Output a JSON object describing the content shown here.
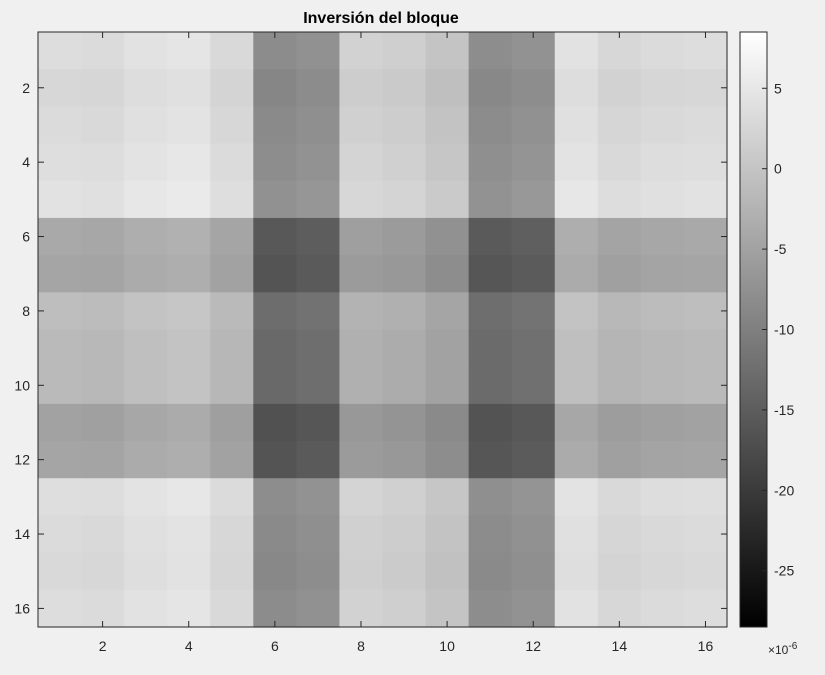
{
  "chart_data": {
    "type": "heatmap",
    "title": "Inversión del bloque",
    "xlabel": "",
    "ylabel": "",
    "colormap": "gray",
    "grid": false,
    "xlim": [
      0.5,
      16.5
    ],
    "ylim": [
      0.5,
      16.5
    ],
    "y_direction": "reversed",
    "xticks": [
      2,
      4,
      6,
      8,
      10,
      12,
      14,
      16
    ],
    "yticks": [
      2,
      4,
      6,
      8,
      10,
      12,
      14,
      16
    ],
    "colorbar": {
      "location": "right",
      "clim": [
        -28.5,
        8.5
      ],
      "ticks": [
        5,
        0,
        -5,
        -10,
        -15,
        -20,
        -25
      ],
      "tick_labels": [
        "5",
        "0",
        "-5",
        "-10",
        "-15",
        "-20",
        "-25"
      ],
      "multiplier_label": "×10",
      "multiplier_exponent": "-6"
    },
    "row_base": [
      6.0,
      4.5,
      5.5,
      6.5,
      7.5,
      -9.0,
      -10.0,
      -3.0,
      -4.0,
      -4.0,
      -11.0,
      -10.0,
      6.5,
      5.5,
      5.0,
      6.0
    ],
    "col_offset": [
      1.0,
      0.5,
      2.5,
      3.5,
      0.0,
      -22.5,
      -21.0,
      -2.0,
      -3.0,
      -6.0,
      -22.0,
      -20.5,
      2.5,
      -0.5,
      0.5,
      1.0
    ],
    "values_formula": "z = 0.5*(row_base + col_offset) × 10^-6"
  }
}
